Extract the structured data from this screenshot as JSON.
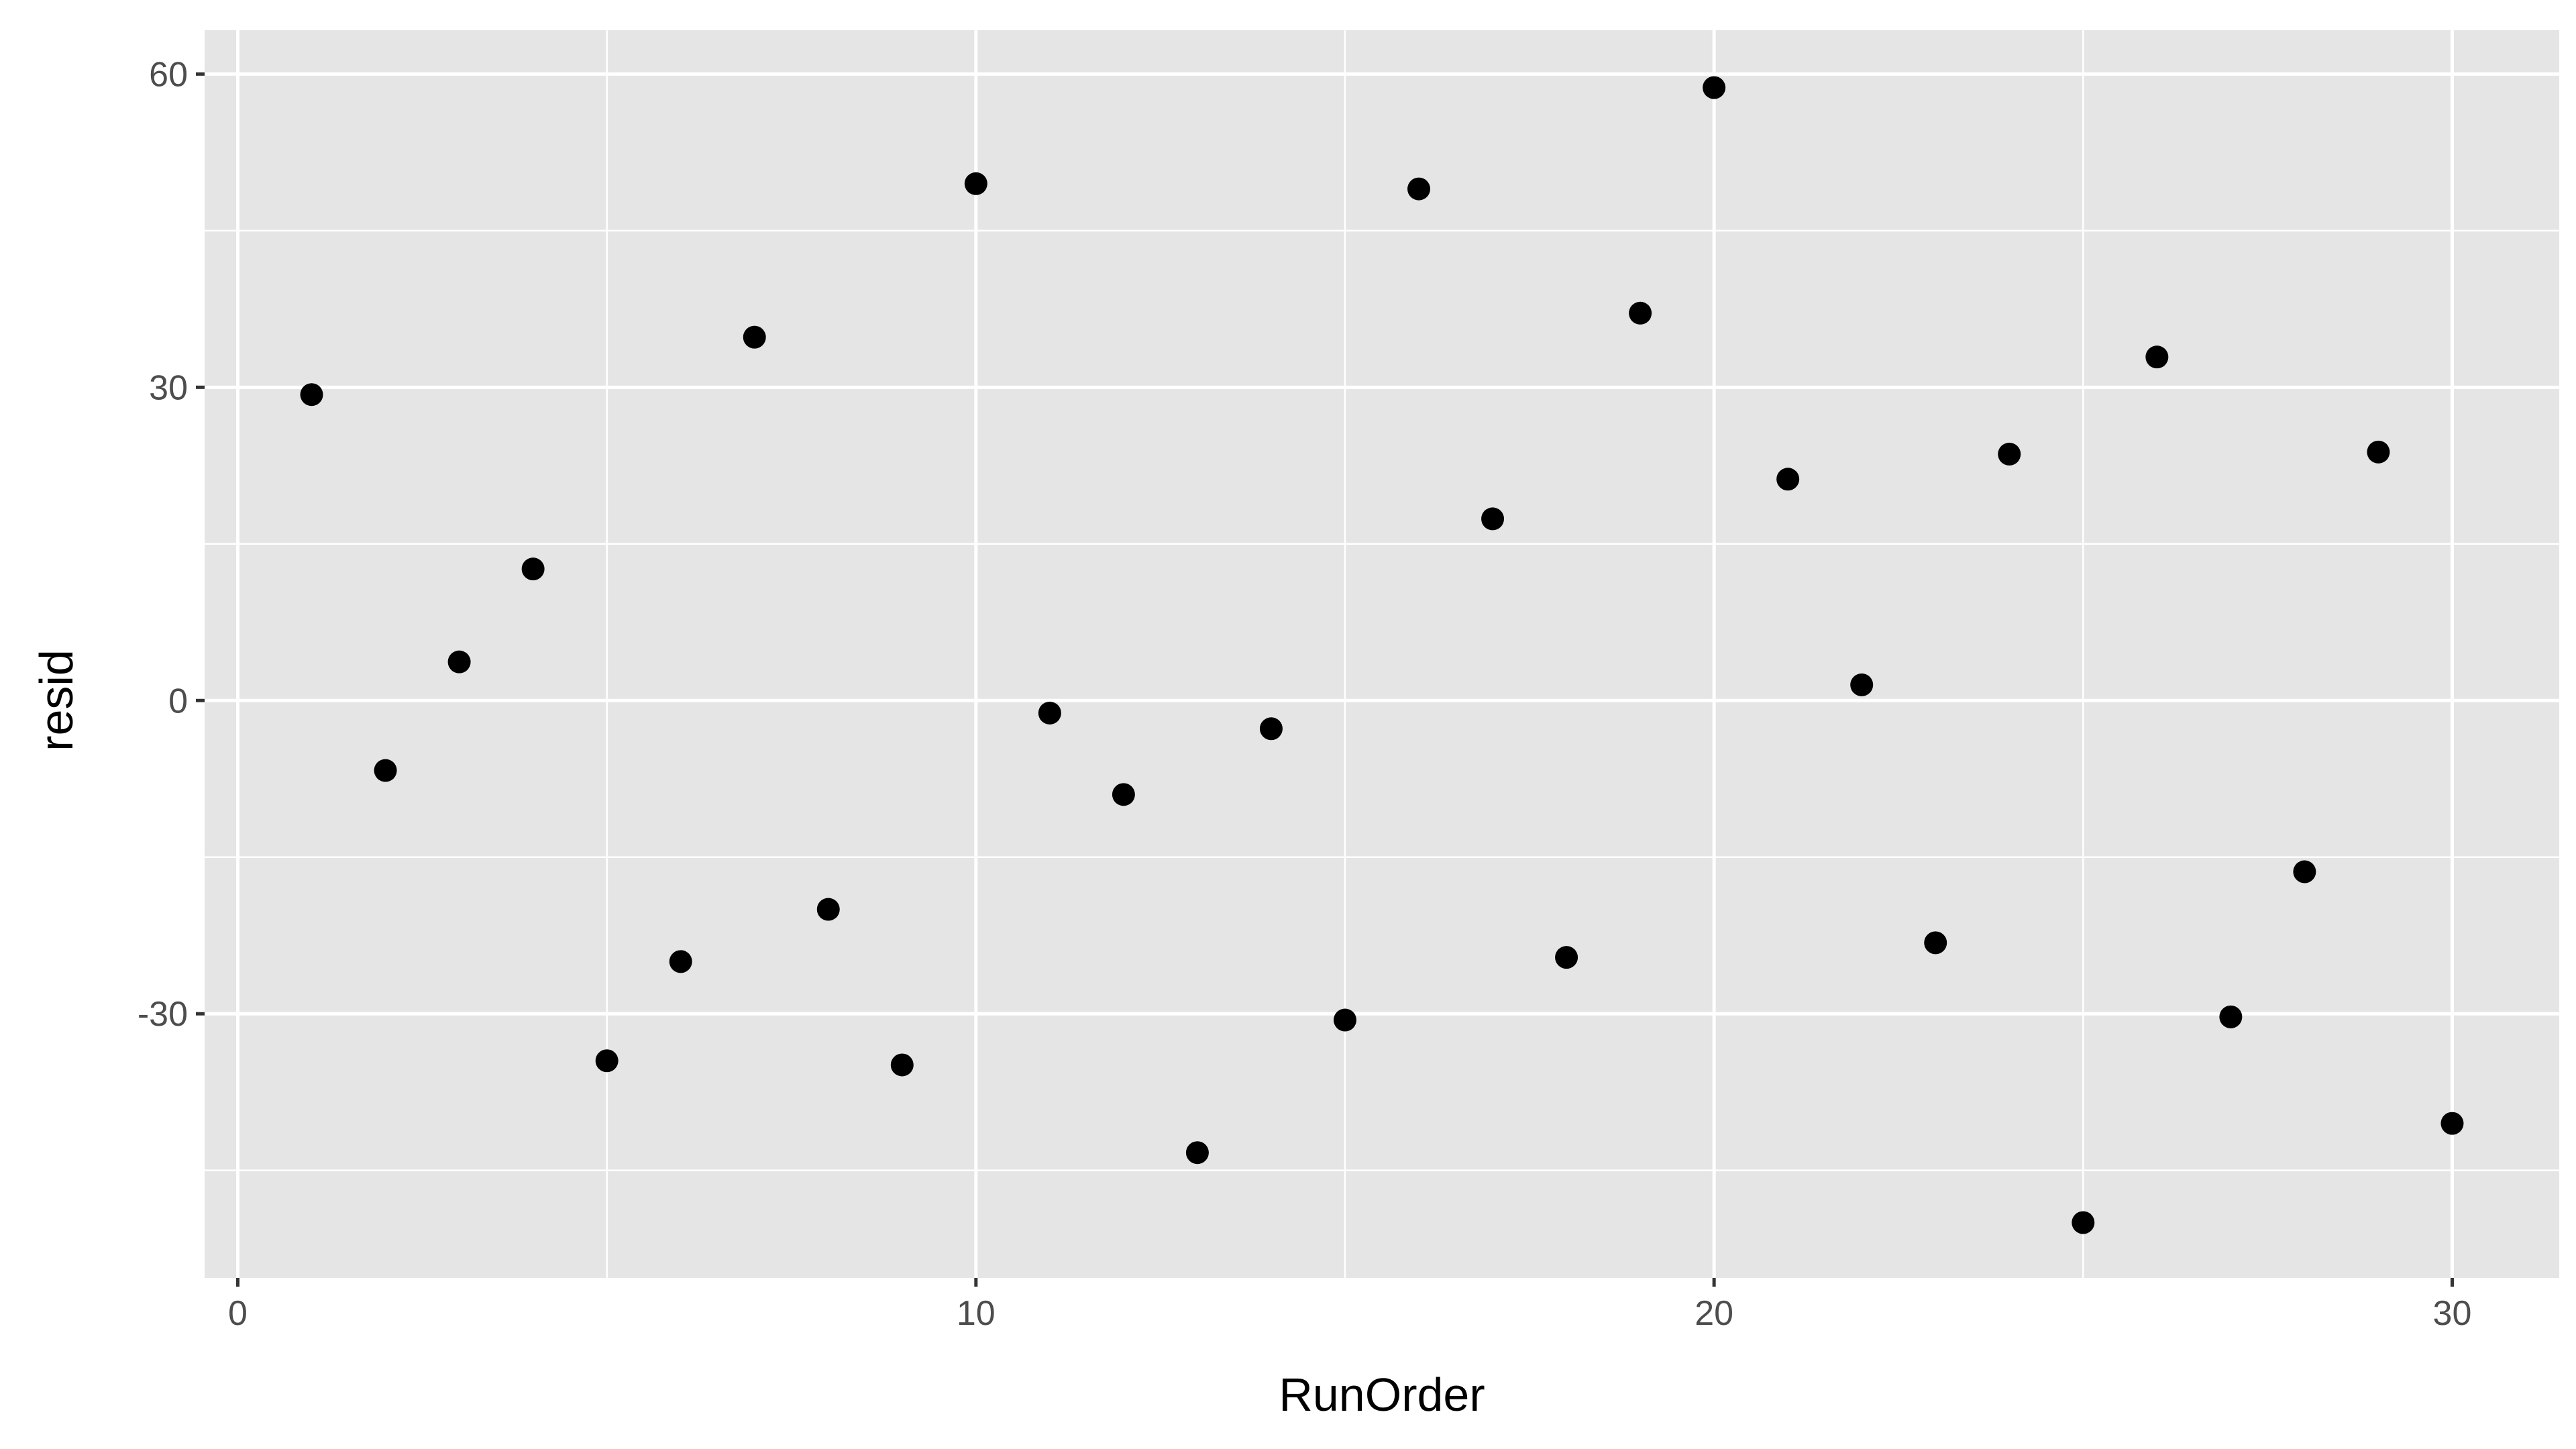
{
  "chart_data": {
    "type": "scatter",
    "title": "",
    "xlabel": "RunOrder",
    "ylabel": "resid",
    "xlim": [
      -0.45,
      31.45
    ],
    "ylim": [
      -55.3,
      64.2
    ],
    "x_ticks": [
      0,
      10,
      20,
      30
    ],
    "y_ticks": [
      -30,
      0,
      30,
      60
    ],
    "x_tick_labels": [
      "0",
      "10",
      "20",
      "30"
    ],
    "y_tick_labels": [
      "-30",
      "0",
      "30",
      "60"
    ],
    "grid": true,
    "legend": "none",
    "series": [
      {
        "x": [
          1,
          2,
          3,
          4,
          5,
          6,
          7,
          8,
          9,
          10,
          11,
          12,
          13,
          14,
          15,
          16,
          17,
          18,
          19,
          20,
          21,
          22,
          23,
          24,
          25,
          26,
          27,
          28,
          29,
          30
        ],
        "y": [
          29.3,
          -6.7,
          3.7,
          12.6,
          -34.5,
          -25.0,
          34.8,
          -20.0,
          -34.9,
          49.5,
          -1.2,
          -9.0,
          -43.3,
          -2.7,
          -30.6,
          49.0,
          17.4,
          -24.6,
          37.1,
          58.7,
          21.2,
          1.5,
          -23.2,
          23.6,
          -50.0,
          32.9,
          -30.3,
          -16.4,
          23.8,
          -40.5
        ]
      }
    ],
    "colors": {
      "panel": "#e5e5e5",
      "grid": "#ffffff",
      "points": "#000000",
      "axis_text": "#4d4d4d",
      "title_text": "#000000"
    }
  }
}
